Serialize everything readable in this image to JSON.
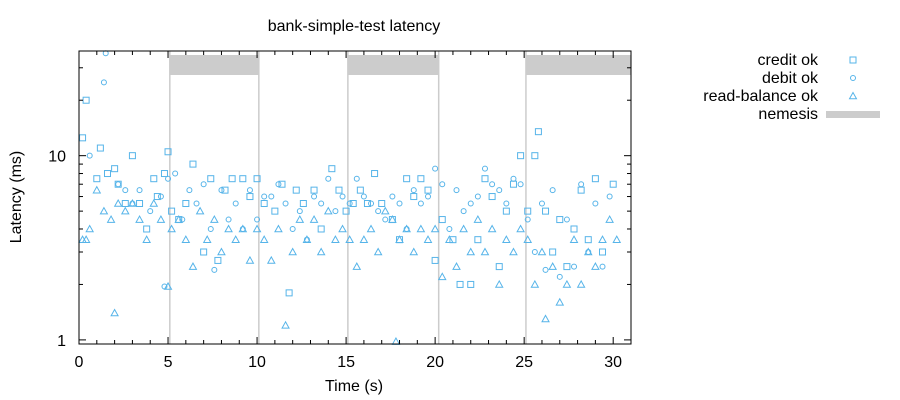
{
  "chart_data": {
    "type": "scatter",
    "title": "bank-simple-test latency",
    "xlabel": "Time (s)",
    "ylabel": "Latency (ms)",
    "xlim": [
      0,
      31
    ],
    "ylim": [
      0.95,
      37
    ],
    "y_scale": "log",
    "x_ticks": [
      0,
      5,
      10,
      15,
      20,
      25,
      30
    ],
    "x_tick_labels": [
      "0",
      "5",
      "10",
      "15",
      "20",
      "25",
      "30"
    ],
    "y_ticks": [
      1,
      10
    ],
    "y_tick_labels": [
      "1",
      "10"
    ],
    "grid": false,
    "legend_position": "outside-right",
    "point_color": "#56b4e9",
    "nemesis_color": "#cccccc",
    "nemesis_intervals": [
      [
        5.1,
        10.1
      ],
      [
        15.1,
        20.2
      ],
      [
        25.1,
        31
      ]
    ],
    "nemesis_vlines": [
      5.1,
      10.1,
      15.1,
      20.2,
      25.1
    ],
    "series": [
      {
        "name": "credit ok",
        "marker": "square",
        "points": [
          [
            0.2,
            12.5
          ],
          [
            0.4,
            20
          ],
          [
            1.0,
            7.5
          ],
          [
            1.2,
            11
          ],
          [
            1.6,
            8.0
          ],
          [
            2.0,
            8.5
          ],
          [
            2.2,
            7.0
          ],
          [
            2.6,
            5.5
          ],
          [
            3.0,
            10
          ],
          [
            3.4,
            5.5
          ],
          [
            3.8,
            4.0
          ],
          [
            4.2,
            7.5
          ],
          [
            4.4,
            6.0
          ],
          [
            4.8,
            8.0
          ],
          [
            5.0,
            10.5
          ],
          [
            5.2,
            5.0
          ],
          [
            5.6,
            4.5
          ],
          [
            6.0,
            5.5
          ],
          [
            6.4,
            9.0
          ],
          [
            7.0,
            3.0
          ],
          [
            7.4,
            7.5
          ],
          [
            7.8,
            2.7
          ],
          [
            8.2,
            6.5
          ],
          [
            8.6,
            7.5
          ],
          [
            9.2,
            7.5
          ],
          [
            9.6,
            6.0
          ],
          [
            10.0,
            7.5
          ],
          [
            10.4,
            5.5
          ],
          [
            11.0,
            5.0
          ],
          [
            11.4,
            7.0
          ],
          [
            11.8,
            1.8
          ],
          [
            12.2,
            6.5
          ],
          [
            12.6,
            5.5
          ],
          [
            13.2,
            6.5
          ],
          [
            13.6,
            4.0
          ],
          [
            14.2,
            8.5
          ],
          [
            14.6,
            6.5
          ],
          [
            15.0,
            5.0
          ],
          [
            15.4,
            5.5
          ],
          [
            15.8,
            6.5
          ],
          [
            16.2,
            5.5
          ],
          [
            16.6,
            8.0
          ],
          [
            17.0,
            5.5
          ],
          [
            17.6,
            4.5
          ],
          [
            18.0,
            3.5
          ],
          [
            18.4,
            7.5
          ],
          [
            18.8,
            6.0
          ],
          [
            19.2,
            7.5
          ],
          [
            19.6,
            6.5
          ],
          [
            20.0,
            2.7
          ],
          [
            20.4,
            4.5
          ],
          [
            21.0,
            3.5
          ],
          [
            21.4,
            2.0
          ],
          [
            22.0,
            2.0
          ],
          [
            22.4,
            3.5
          ],
          [
            22.8,
            7.5
          ],
          [
            23.2,
            6.0
          ],
          [
            23.6,
            2.5
          ],
          [
            24.0,
            5.0
          ],
          [
            24.4,
            7.0
          ],
          [
            24.8,
            10
          ],
          [
            25.2,
            5.0
          ],
          [
            25.6,
            10
          ],
          [
            25.8,
            13.5
          ],
          [
            26.2,
            5.0
          ],
          [
            26.6,
            3.0
          ],
          [
            27.0,
            4.5
          ],
          [
            27.4,
            2.5
          ],
          [
            27.8,
            4.0
          ],
          [
            28.2,
            6.5
          ],
          [
            28.6,
            3.5
          ],
          [
            29.0,
            7.5
          ],
          [
            29.4,
            3.0
          ],
          [
            30.0,
            7.0
          ]
        ]
      },
      {
        "name": "debit ok",
        "marker": "circle",
        "points": [
          [
            0.6,
            10
          ],
          [
            1.4,
            25
          ],
          [
            1.5,
            36
          ],
          [
            2.2,
            7.0
          ],
          [
            2.6,
            6.5
          ],
          [
            3.0,
            5.5
          ],
          [
            3.4,
            6.5
          ],
          [
            4.0,
            5.0
          ],
          [
            4.6,
            6.0
          ],
          [
            4.8,
            1.95
          ],
          [
            5.0,
            7.5
          ],
          [
            5.4,
            8.0
          ],
          [
            5.8,
            4.5
          ],
          [
            6.2,
            6.5
          ],
          [
            6.6,
            5.5
          ],
          [
            7.0,
            7.0
          ],
          [
            7.4,
            4.0
          ],
          [
            7.6,
            2.4
          ],
          [
            8.0,
            6.5
          ],
          [
            8.4,
            4.5
          ],
          [
            8.8,
            5.5
          ],
          [
            9.2,
            4.0
          ],
          [
            9.6,
            6.5
          ],
          [
            10.0,
            4.5
          ],
          [
            10.4,
            6.0
          ],
          [
            10.8,
            6.0
          ],
          [
            11.2,
            7.0
          ],
          [
            11.6,
            5.5
          ],
          [
            12.0,
            4.0
          ],
          [
            12.4,
            5.0
          ],
          [
            12.8,
            3.5
          ],
          [
            13.2,
            6.0
          ],
          [
            13.6,
            5.5
          ],
          [
            14.0,
            7.5
          ],
          [
            14.4,
            5.0
          ],
          [
            14.8,
            6.0
          ],
          [
            15.2,
            5.5
          ],
          [
            15.6,
            7.5
          ],
          [
            16.0,
            6.0
          ],
          [
            16.4,
            5.5
          ],
          [
            16.8,
            5.0
          ],
          [
            17.2,
            4.5
          ],
          [
            17.6,
            6.0
          ],
          [
            18.0,
            5.5
          ],
          [
            18.4,
            4.0
          ],
          [
            18.8,
            6.5
          ],
          [
            19.2,
            5.5
          ],
          [
            19.6,
            6.0
          ],
          [
            20.0,
            8.5
          ],
          [
            20.4,
            7.0
          ],
          [
            20.8,
            4.0
          ],
          [
            21.2,
            6.5
          ],
          [
            21.6,
            5.0
          ],
          [
            22.0,
            5.5
          ],
          [
            22.4,
            6.0
          ],
          [
            22.8,
            8.5
          ],
          [
            23.2,
            7.0
          ],
          [
            23.6,
            6.5
          ],
          [
            24.0,
            5.5
          ],
          [
            24.4,
            7.5
          ],
          [
            24.8,
            7.0
          ],
          [
            25.2,
            4.5
          ],
          [
            25.6,
            3.0
          ],
          [
            26.0,
            5.5
          ],
          [
            26.2,
            2.4
          ],
          [
            26.6,
            6.5
          ],
          [
            27.0,
            2.2
          ],
          [
            27.4,
            4.5
          ],
          [
            27.8,
            2.5
          ],
          [
            28.2,
            7.0
          ],
          [
            28.6,
            3.0
          ],
          [
            29.0,
            5.5
          ],
          [
            29.4,
            2.5
          ],
          [
            29.8,
            6.0
          ]
        ]
      },
      {
        "name": "read-balance ok",
        "marker": "triangle",
        "points": [
          [
            0.2,
            3.5
          ],
          [
            0.4,
            3.5
          ],
          [
            0.6,
            4.0
          ],
          [
            1.0,
            6.5
          ],
          [
            1.4,
            5.0
          ],
          [
            1.8,
            4.5
          ],
          [
            2.0,
            1.4
          ],
          [
            2.2,
            5.5
          ],
          [
            2.6,
            5.0
          ],
          [
            3.0,
            5.5
          ],
          [
            3.4,
            4.5
          ],
          [
            3.8,
            3.5
          ],
          [
            4.2,
            5.5
          ],
          [
            4.6,
            4.5
          ],
          [
            5.0,
            1.95
          ],
          [
            5.2,
            4.0
          ],
          [
            5.6,
            4.5
          ],
          [
            6.0,
            3.5
          ],
          [
            6.4,
            2.5
          ],
          [
            6.8,
            5.0
          ],
          [
            7.2,
            3.5
          ],
          [
            7.6,
            4.5
          ],
          [
            8.0,
            3.0
          ],
          [
            8.4,
            4.0
          ],
          [
            8.8,
            3.5
          ],
          [
            9.2,
            4.0
          ],
          [
            9.6,
            2.7
          ],
          [
            10.0,
            4.0
          ],
          [
            10.4,
            3.5
          ],
          [
            10.8,
            2.7
          ],
          [
            11.2,
            4.0
          ],
          [
            11.6,
            1.2
          ],
          [
            12.0,
            3.0
          ],
          [
            12.4,
            4.5
          ],
          [
            12.8,
            3.5
          ],
          [
            13.2,
            4.5
          ],
          [
            13.6,
            3.0
          ],
          [
            14.0,
            5.0
          ],
          [
            14.4,
            3.5
          ],
          [
            14.8,
            4.0
          ],
          [
            15.2,
            3.5
          ],
          [
            15.6,
            2.5
          ],
          [
            16.0,
            3.5
          ],
          [
            16.4,
            4.0
          ],
          [
            16.8,
            3.0
          ],
          [
            17.2,
            5.0
          ],
          [
            17.6,
            4.5
          ],
          [
            17.8,
            0.98
          ],
          [
            18.0,
            3.5
          ],
          [
            18.4,
            4.0
          ],
          [
            18.8,
            3.0
          ],
          [
            19.2,
            4.0
          ],
          [
            19.6,
            3.5
          ],
          [
            20.0,
            4.0
          ],
          [
            20.4,
            2.2
          ],
          [
            20.8,
            3.5
          ],
          [
            21.2,
            2.5
          ],
          [
            21.6,
            4.0
          ],
          [
            22.0,
            3.0
          ],
          [
            22.4,
            4.5
          ],
          [
            22.8,
            3.0
          ],
          [
            23.2,
            4.0
          ],
          [
            23.6,
            2.0
          ],
          [
            24.0,
            3.5
          ],
          [
            24.4,
            3.0
          ],
          [
            24.8,
            4.0
          ],
          [
            25.2,
            3.5
          ],
          [
            25.6,
            2.0
          ],
          [
            26.0,
            3.0
          ],
          [
            26.2,
            1.3
          ],
          [
            26.6,
            2.5
          ],
          [
            27.0,
            1.6
          ],
          [
            27.4,
            2.0
          ],
          [
            27.8,
            3.5
          ],
          [
            28.2,
            2.0
          ],
          [
            28.6,
            3.0
          ],
          [
            29.0,
            2.5
          ],
          [
            29.4,
            3.5
          ],
          [
            29.8,
            4.5
          ],
          [
            30.2,
            3.5
          ]
        ]
      }
    ],
    "legend": [
      {
        "label": "credit ok",
        "marker": "square"
      },
      {
        "label": "debit ok",
        "marker": "circle"
      },
      {
        "label": "read-balance ok",
        "marker": "triangle"
      },
      {
        "label": "nemesis",
        "marker": "band"
      }
    ]
  }
}
